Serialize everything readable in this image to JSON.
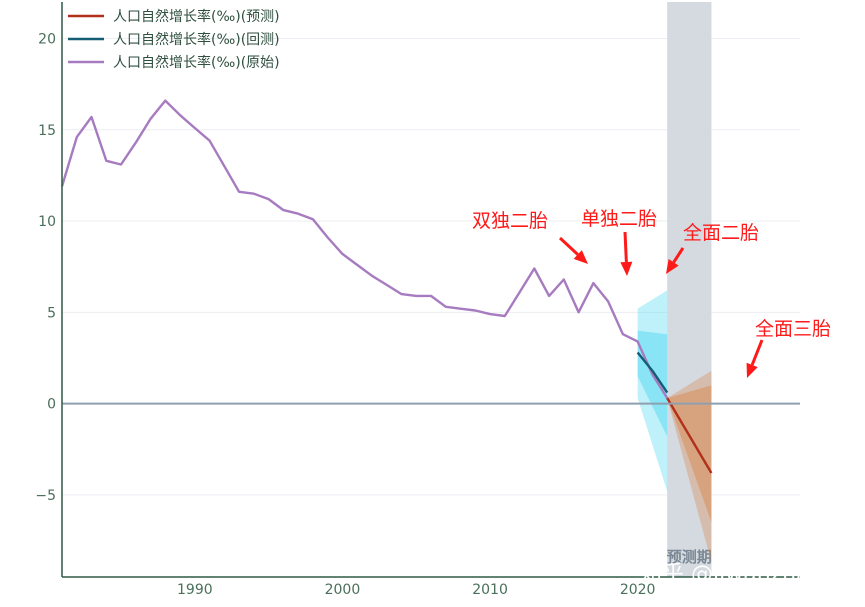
{
  "chart_data": {
    "type": "line",
    "title": "",
    "xlabel": "",
    "ylabel": "",
    "xlim": [
      1981,
      2031
    ],
    "ylim": [
      -9.5,
      22
    ],
    "xticks": [
      "1990",
      "2000",
      "2010",
      "2020"
    ],
    "yticks": [
      "20",
      "15",
      "10",
      "5",
      "0",
      "−5"
    ],
    "grid": true,
    "legend_position": "top-left",
    "zero_line": 0,
    "forecast_region": {
      "x_start": 2022,
      "x_end": 2025,
      "label": "预测期",
      "color": "#d2d8de"
    },
    "series": [
      {
        "name": "人口自然增长率(‰)(预测)",
        "color": "#b22f1a",
        "x": [
          2022,
          2025
        ],
        "y": [
          0.3,
          -3.8
        ]
      },
      {
        "name": "人口自然增长率(‰)(回测)",
        "color": "#135e75",
        "x": [
          2020,
          2021,
          2022
        ],
        "y": [
          2.8,
          1.8,
          0.6
        ]
      },
      {
        "name": "人口自然增长率(‰)(原始)",
        "color": "#a67bbf",
        "x": [
          1981,
          1982,
          1983,
          1984,
          1985,
          1986,
          1987,
          1988,
          1989,
          1990,
          1991,
          1992,
          1993,
          1994,
          1995,
          1996,
          1997,
          1998,
          1999,
          2000,
          2001,
          2002,
          2003,
          2004,
          2005,
          2006,
          2007,
          2008,
          2009,
          2010,
          2011,
          2012,
          2013,
          2014,
          2015,
          2016,
          2017,
          2018,
          2019,
          2020,
          2021,
          2022
        ],
        "y": [
          11.9,
          14.6,
          15.7,
          13.3,
          13.1,
          14.3,
          15.6,
          16.6,
          15.8,
          15.1,
          14.4,
          13.0,
          11.6,
          11.5,
          11.2,
          10.6,
          10.4,
          10.1,
          9.1,
          8.2,
          7.6,
          7.0,
          6.5,
          6.0,
          5.9,
          5.9,
          5.3,
          5.2,
          5.1,
          4.9,
          4.8,
          6.1,
          7.4,
          5.9,
          6.8,
          5.0,
          6.6,
          5.6,
          3.8,
          3.4,
          1.6,
          0.3
        ]
      }
    ],
    "bands": [
      {
        "series": "人口自然增长率(‰)(回测)",
        "color": "#48d8f2",
        "x": [
          2020,
          2022
        ],
        "outer": {
          "upper": [
            5.2,
            6.2
          ],
          "lower": [
            0.3,
            -4.8
          ]
        },
        "inner": {
          "upper": [
            4.0,
            3.8
          ],
          "lower": [
            1.5,
            -1.8
          ]
        }
      },
      {
        "series": "人口自然增长率(‰)(预测)",
        "color": "#d9844a",
        "x": [
          2022,
          2025
        ],
        "outer": {
          "upper": [
            0.3,
            1.8
          ],
          "lower": [
            0.3,
            -8.7
          ]
        },
        "inner": {
          "upper": [
            0.3,
            1.0
          ],
          "lower": [
            0.3,
            -6.5
          ]
        }
      }
    ],
    "annotations": [
      {
        "text": "双独二胎",
        "x": 2013,
        "y": 7.4
      },
      {
        "text": "单独二胎",
        "x": 2015,
        "y": 6.8
      },
      {
        "text": "全面二胎",
        "x": 2017,
        "y": 6.6
      },
      {
        "text": "全面三胎",
        "x": 2022,
        "y": 0.9
      }
    ]
  },
  "watermark": "知乎 @liwanzhao"
}
